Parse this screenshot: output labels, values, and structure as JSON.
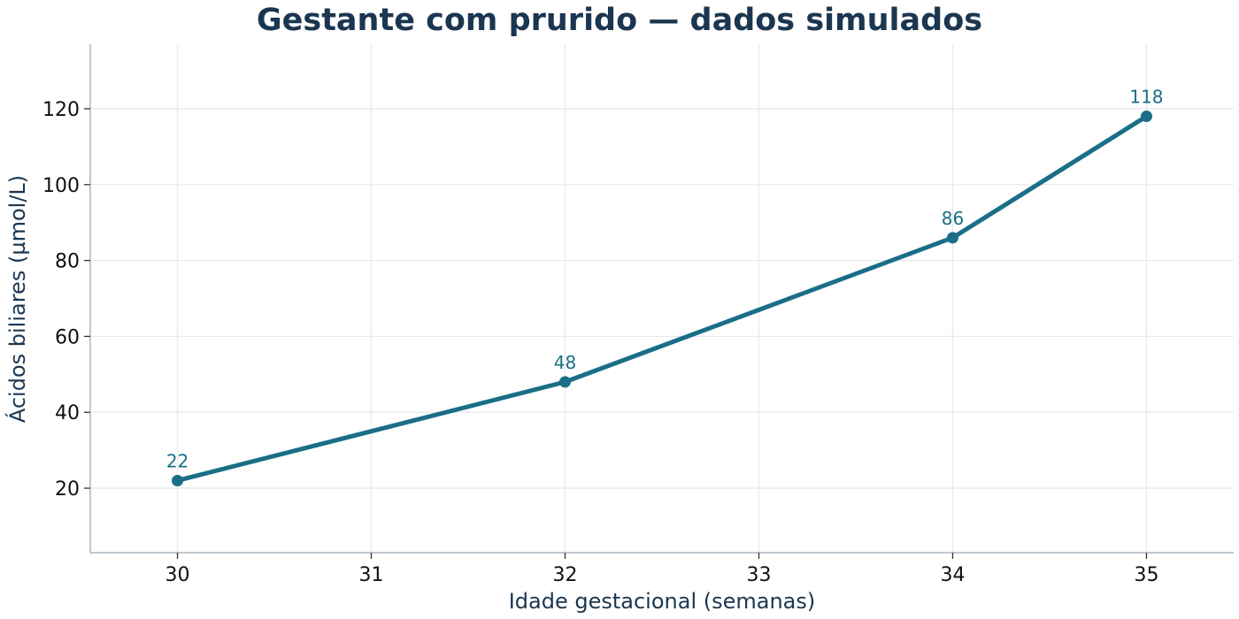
{
  "chart_data": {
    "type": "line",
    "title": "Gestante com prurido — dados simulados",
    "xlabel": "Idade gestacional (semanas)",
    "ylabel": "Ácidos biliares (µmol/L)",
    "x": [
      30,
      32,
      34,
      35
    ],
    "series": [
      {
        "values": [
          22,
          48,
          86,
          118
        ],
        "color": "#1a6e87"
      }
    ],
    "xticks": [
      30,
      31,
      32,
      33,
      34,
      35
    ],
    "yticks": [
      20,
      40,
      60,
      80,
      100,
      120
    ],
    "xlim": [
      29.55,
      35.45
    ],
    "ylim": [
      3,
      137
    ],
    "grid": true,
    "data_labels": true
  }
}
